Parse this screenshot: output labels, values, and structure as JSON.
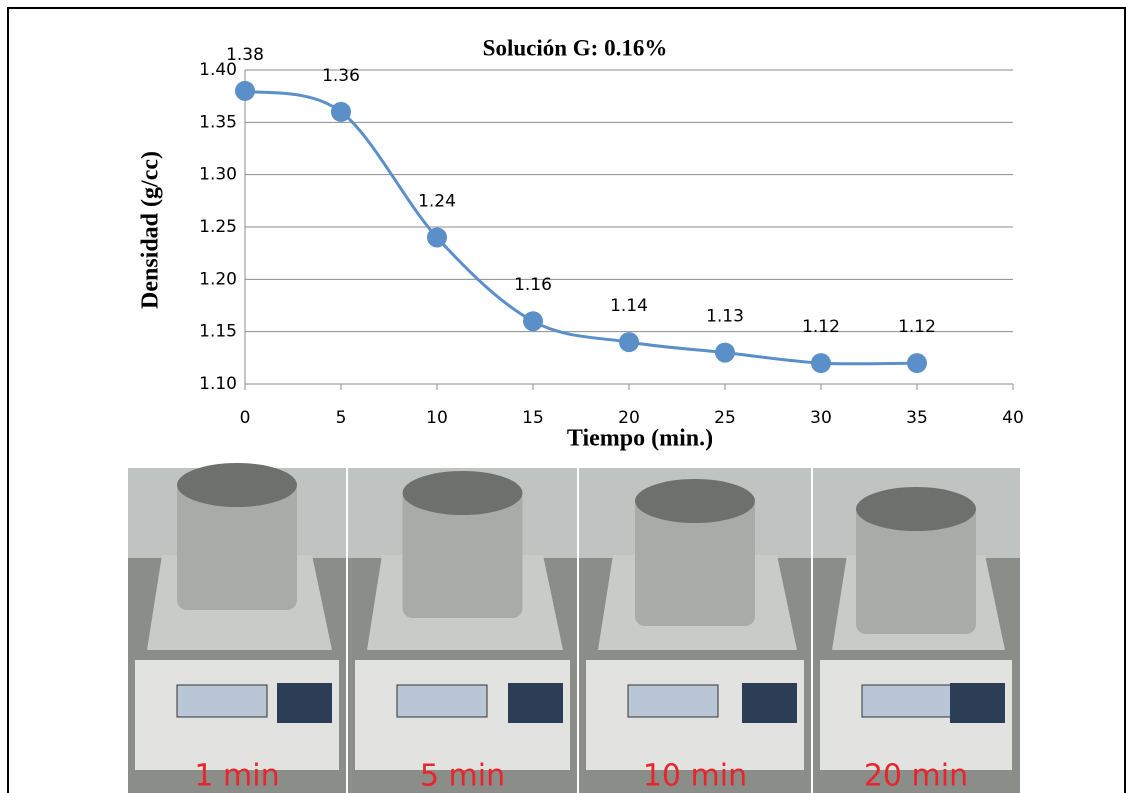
{
  "chart_data": {
    "type": "line",
    "title": "Solución G: 0.16%",
    "x_label": "Tiempo (min.)",
    "y_label": "Densidad (g/cc)",
    "x": [
      0,
      5,
      10,
      15,
      20,
      25,
      30,
      35
    ],
    "values": [
      1.38,
      1.36,
      1.24,
      1.16,
      1.14,
      1.13,
      1.12,
      1.12
    ],
    "color": "#5b8fc9",
    "xlim": [
      0,
      40
    ],
    "xticks": [
      0,
      5,
      10,
      15,
      20,
      25,
      30,
      35,
      40
    ],
    "ylim": [
      1.1,
      1.4
    ],
    "yticks": [
      {
        "value": 1.1,
        "label": "1.10"
      },
      1.15,
      {
        "value": 1.2,
        "label": "1.20"
      },
      1.25,
      {
        "value": 1.3,
        "label": "1.30"
      },
      1.35,
      {
        "value": 1.4,
        "label": "1.40"
      }
    ],
    "grid": true,
    "smooth": true
  },
  "photos": [
    {
      "caption": "1 min"
    },
    {
      "caption": "5 min"
    },
    {
      "caption": "10 min"
    },
    {
      "caption": "20 min"
    }
  ]
}
